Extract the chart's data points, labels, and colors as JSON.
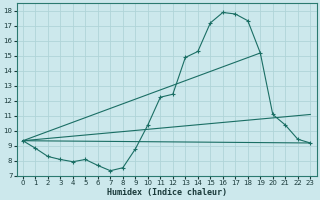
{
  "xlabel": "Humidex (Indice chaleur)",
  "bg_color": "#cce8ec",
  "grid_color": "#b0d4d8",
  "line_color": "#1a6e64",
  "xlim": [
    -0.5,
    23.5
  ],
  "ylim": [
    7,
    18.5
  ],
  "xticks": [
    0,
    1,
    2,
    3,
    4,
    5,
    6,
    7,
    8,
    9,
    10,
    11,
    12,
    13,
    14,
    15,
    16,
    17,
    18,
    19,
    20,
    21,
    22,
    23
  ],
  "yticks": [
    7,
    8,
    9,
    10,
    11,
    12,
    13,
    14,
    15,
    16,
    17,
    18
  ],
  "line1_x": [
    0,
    1,
    2,
    3,
    4,
    5,
    6,
    7,
    8,
    9,
    10,
    11,
    12,
    13,
    14,
    15,
    16,
    17,
    18,
    19,
    20,
    21,
    22,
    23
  ],
  "line1_y": [
    9.35,
    8.85,
    8.3,
    8.1,
    7.95,
    8.1,
    7.7,
    7.35,
    7.55,
    8.8,
    10.4,
    12.25,
    12.45,
    14.9,
    15.3,
    17.2,
    17.9,
    17.8,
    17.35,
    15.2,
    11.1,
    10.4,
    9.45,
    9.2
  ],
  "line2_x": [
    0,
    19
  ],
  "line2_y": [
    9.35,
    15.2
  ],
  "line3_x": [
    0,
    23
  ],
  "line3_y": [
    9.35,
    11.1
  ],
  "line4_x": [
    0,
    23
  ],
  "line4_y": [
    9.35,
    9.2
  ]
}
